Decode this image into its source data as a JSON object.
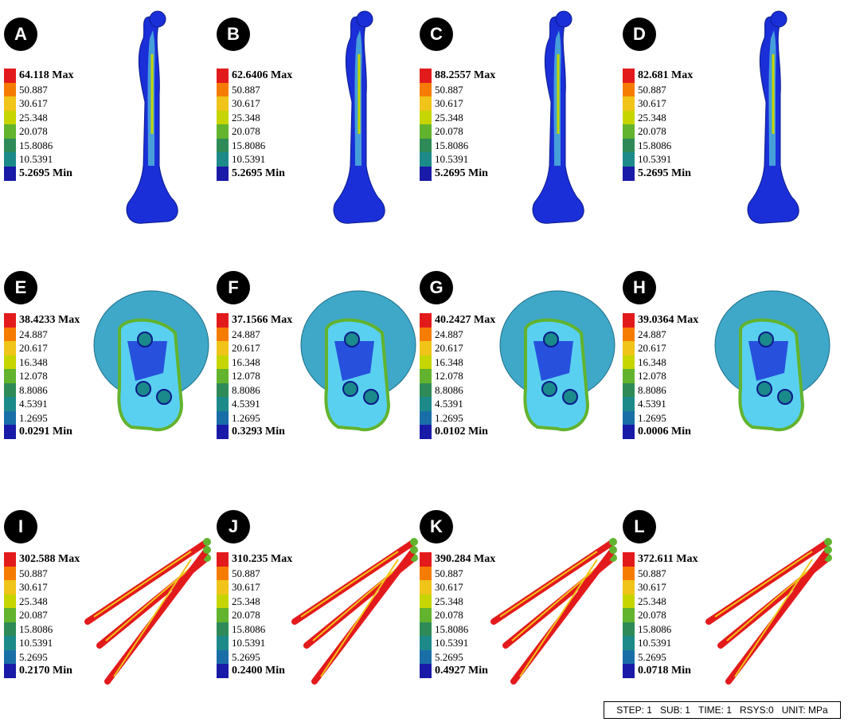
{
  "colors": [
    "#e31a1c",
    "#f57c00",
    "#f0c419",
    "#c6d500",
    "#62b32e",
    "#2e8b57",
    "#1d8a8a",
    "#1a6ea8",
    "#1a1aa8"
  ],
  "panels": [
    {
      "label": "A",
      "max": "64.118 Max",
      "mid": [
        "50.887",
        "30.617",
        "25.348",
        "20.078",
        "15.8086",
        "10.5391"
      ],
      "min": "5.2695 Min",
      "type": "femur"
    },
    {
      "label": "B",
      "max": "62.6406 Max",
      "mid": [
        "50.887",
        "30.617",
        "25.348",
        "20.078",
        "15.8086",
        "10.5391"
      ],
      "min": "5.2695 Min",
      "type": "femur"
    },
    {
      "label": "C",
      "max": "88.2557 Max",
      "mid": [
        "50.887",
        "30.617",
        "25.348",
        "20.078",
        "15.8086",
        "10.5391"
      ],
      "min": "5.2695 Min",
      "type": "femur"
    },
    {
      "label": "D",
      "max": "82.681 Max",
      "mid": [
        "50.887",
        "30.617",
        "25.348",
        "20.078",
        "15.8086",
        "10.5391"
      ],
      "min": "5.2695 Min",
      "type": "femur"
    },
    {
      "label": "E",
      "max": "38.4233 Max",
      "mid": [
        "24.887",
        "20.617",
        "16.348",
        "12.078",
        "8.8086",
        "4.5391",
        "1.2695"
      ],
      "min": "0.0291 Min",
      "type": "head"
    },
    {
      "label": "F",
      "max": "37.1566 Max",
      "mid": [
        "24.887",
        "20.617",
        "16.348",
        "12.078",
        "8.8086",
        "4.5391",
        "1.2695"
      ],
      "min": "0.3293 Min",
      "type": "head"
    },
    {
      "label": "G",
      "max": "40.2427 Max",
      "mid": [
        "24.887",
        "20.617",
        "16.348",
        "12.078",
        "8.8086",
        "4.5391",
        "1.2695"
      ],
      "min": "0.0102 Min",
      "type": "head"
    },
    {
      "label": "H",
      "max": "39.0364 Max",
      "mid": [
        "24.887",
        "20.617",
        "16.348",
        "12.078",
        "8.8086",
        "4.5391",
        "1.2695"
      ],
      "min": "0.0006 Min",
      "type": "head"
    },
    {
      "label": "I",
      "max": "302.588 Max",
      "mid": [
        "50.887",
        "30.617",
        "25.348",
        "20.087",
        "15.8086",
        "10.5391",
        "5.2695"
      ],
      "min": "0.2170 Min",
      "type": "screws"
    },
    {
      "label": "J",
      "max": "310.235 Max",
      "mid": [
        "50.887",
        "30.617",
        "25.348",
        "20.078",
        "15.8086",
        "10.5391",
        "5.2695"
      ],
      "min": "0.2400 Min",
      "type": "screws"
    },
    {
      "label": "K",
      "max": "390.284 Max",
      "mid": [
        "50.887",
        "30.617",
        "25.348",
        "20.078",
        "15.8086",
        "10.5391",
        "5.2695"
      ],
      "min": "0.4927 Min",
      "type": "screws"
    },
    {
      "label": "L",
      "max": "372.611 Max",
      "mid": [
        "50.887",
        "30.617",
        "25.348",
        "20.078",
        "15.8086",
        "10.5391",
        "5.2695"
      ],
      "min": "0.0718 Min",
      "type": "screws"
    }
  ],
  "status": {
    "step": "STEP: 1",
    "sub": "SUB: 1",
    "time": "TIME: 1",
    "rsys": "RSYS:0",
    "unit": "UNIT: MPa"
  }
}
